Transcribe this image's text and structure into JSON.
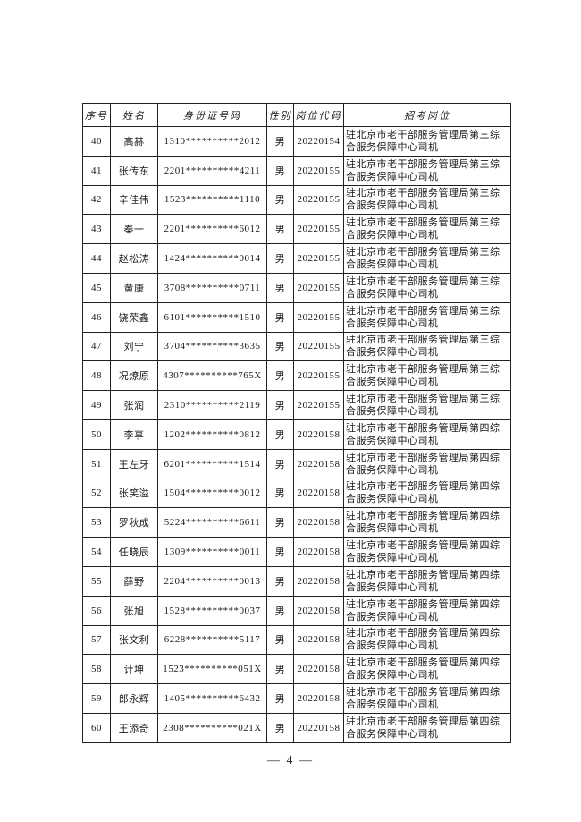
{
  "page": {
    "footer_page_number": "— 4 —"
  },
  "table": {
    "headers": [
      "序号",
      "姓名",
      "身份证号码",
      "性别",
      "岗位代码",
      "招考岗位"
    ],
    "rows": [
      {
        "no": "40",
        "name": "高赫",
        "id": "1310**********2012",
        "gender": "男",
        "code": "20220154",
        "position": "驻北京市老干部服务管理局第三综合服务保障中心司机"
      },
      {
        "no": "41",
        "name": "张传东",
        "id": "2201**********4211",
        "gender": "男",
        "code": "20220155",
        "position": "驻北京市老干部服务管理局第三综合服务保障中心司机"
      },
      {
        "no": "42",
        "name": "辛佳伟",
        "id": "1523**********1110",
        "gender": "男",
        "code": "20220155",
        "position": "驻北京市老干部服务管理局第三综合服务保障中心司机"
      },
      {
        "no": "43",
        "name": "秦一",
        "id": "2201**********6012",
        "gender": "男",
        "code": "20220155",
        "position": "驻北京市老干部服务管理局第三综合服务保障中心司机"
      },
      {
        "no": "44",
        "name": "赵松涛",
        "id": "1424**********0014",
        "gender": "男",
        "code": "20220155",
        "position": "驻北京市老干部服务管理局第三综合服务保障中心司机"
      },
      {
        "no": "45",
        "name": "黄康",
        "id": "3708**********0711",
        "gender": "男",
        "code": "20220155",
        "position": "驻北京市老干部服务管理局第三综合服务保障中心司机"
      },
      {
        "no": "46",
        "name": "饶荣鑫",
        "id": "6101**********1510",
        "gender": "男",
        "code": "20220155",
        "position": "驻北京市老干部服务管理局第三综合服务保障中心司机"
      },
      {
        "no": "47",
        "name": "刘宁",
        "id": "3704**********3635",
        "gender": "男",
        "code": "20220155",
        "position": "驻北京市老干部服务管理局第三综合服务保障中心司机"
      },
      {
        "no": "48",
        "name": "况燎原",
        "id": "4307**********765X",
        "gender": "男",
        "code": "20220155",
        "position": "驻北京市老干部服务管理局第三综合服务保障中心司机"
      },
      {
        "no": "49",
        "name": "张润",
        "id": "2310**********2119",
        "gender": "男",
        "code": "20220155",
        "position": "驻北京市老干部服务管理局第三综合服务保障中心司机"
      },
      {
        "no": "50",
        "name": "李享",
        "id": "1202**********0812",
        "gender": "男",
        "code": "20220158",
        "position": "驻北京市老干部服务管理局第四综合服务保障中心司机"
      },
      {
        "no": "51",
        "name": "王左牙",
        "id": "6201**********1514",
        "gender": "男",
        "code": "20220158",
        "position": "驻北京市老干部服务管理局第四综合服务保障中心司机"
      },
      {
        "no": "52",
        "name": "张笑溢",
        "id": "1504**********0012",
        "gender": "男",
        "code": "20220158",
        "position": "驻北京市老干部服务管理局第四综合服务保障中心司机"
      },
      {
        "no": "53",
        "name": "罗秋成",
        "id": "5224**********6611",
        "gender": "男",
        "code": "20220158",
        "position": "驻北京市老干部服务管理局第四综合服务保障中心司机"
      },
      {
        "no": "54",
        "name": "任晓辰",
        "id": "1309**********0011",
        "gender": "男",
        "code": "20220158",
        "position": "驻北京市老干部服务管理局第四综合服务保障中心司机"
      },
      {
        "no": "55",
        "name": "薛野",
        "id": "2204**********0013",
        "gender": "男",
        "code": "20220158",
        "position": "驻北京市老干部服务管理局第四综合服务保障中心司机"
      },
      {
        "no": "56",
        "name": "张旭",
        "id": "1528**********0037",
        "gender": "男",
        "code": "20220158",
        "position": "驻北京市老干部服务管理局第四综合服务保障中心司机"
      },
      {
        "no": "57",
        "name": "张文利",
        "id": "6228**********5117",
        "gender": "男",
        "code": "20220158",
        "position": "驻北京市老干部服务管理局第四综合服务保障中心司机"
      },
      {
        "no": "58",
        "name": "计坤",
        "id": "1523**********051X",
        "gender": "男",
        "code": "20220158",
        "position": "驻北京市老干部服务管理局第四综合服务保障中心司机"
      },
      {
        "no": "59",
        "name": "郎永辉",
        "id": "1405**********6432",
        "gender": "男",
        "code": "20220158",
        "position": "驻北京市老干部服务管理局第四综合服务保障中心司机"
      },
      {
        "no": "60",
        "name": "王添奇",
        "id": "2308**********021X",
        "gender": "男",
        "code": "20220158",
        "position": "驻北京市老干部服务管理局第四综合服务保障中心司机"
      }
    ]
  }
}
